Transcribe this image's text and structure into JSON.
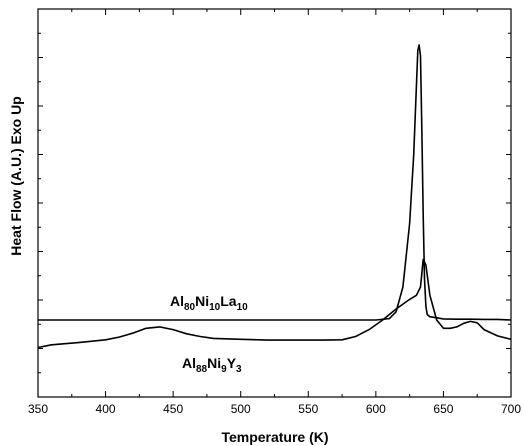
{
  "chart_data": {
    "type": "line",
    "title": "",
    "xlabel": "Temperature (K)",
    "ylabel": "Heat Flow (A.U.) Exo Up",
    "xlim": [
      350,
      700
    ],
    "x_ticks": [
      "350",
      "400",
      "450",
      "500",
      "550",
      "600",
      "650",
      "700"
    ],
    "y_ticks_labeled": false,
    "y_units": "arbitrary",
    "grid": false,
    "series": [
      {
        "name": "Al80Ni10La10",
        "label_parts": [
          {
            "text": "Al",
            "sub": false
          },
          {
            "text": "80",
            "sub": true
          },
          {
            "text": "Ni",
            "sub": false
          },
          {
            "text": "10",
            "sub": true
          },
          {
            "text": "La",
            "sub": false
          },
          {
            "text": "10",
            "sub": true
          }
        ],
        "x": [
          350,
          600,
          610,
          615,
          620,
          625,
          628,
          630,
          631,
          632,
          633,
          634,
          635,
          636,
          637,
          638,
          640,
          645,
          650,
          660,
          670,
          680,
          690,
          700
        ],
        "y": [
          0.0,
          0.0,
          0.005,
          0.03,
          0.12,
          0.35,
          0.6,
          0.85,
          0.98,
          1.0,
          0.96,
          0.7,
          0.38,
          0.15,
          0.05,
          0.02,
          0.012,
          0.008,
          0.004,
          0.003,
          0.003,
          0.002,
          0.002,
          0.0
        ]
      },
      {
        "name": "Al88Ni9Y3",
        "label_parts": [
          {
            "text": "Al",
            "sub": false
          },
          {
            "text": "88",
            "sub": true
          },
          {
            "text": "Ni",
            "sub": false
          },
          {
            "text": "9",
            "sub": true
          },
          {
            "text": "Y",
            "sub": false
          },
          {
            "text": "3",
            "sub": true
          }
        ],
        "x": [
          350,
          360,
          380,
          400,
          410,
          420,
          430,
          440,
          450,
          460,
          470,
          480,
          500,
          520,
          540,
          560,
          575,
          585,
          595,
          605,
          615,
          625,
          630,
          633,
          635,
          637,
          640,
          645,
          650,
          655,
          660,
          665,
          670,
          675,
          680,
          690,
          700
        ],
        "y": [
          -0.1,
          -0.09,
          -0.082,
          -0.072,
          -0.062,
          -0.048,
          -0.03,
          -0.025,
          -0.035,
          -0.05,
          -0.06,
          -0.067,
          -0.07,
          -0.073,
          -0.073,
          -0.073,
          -0.072,
          -0.06,
          -0.035,
          0.0,
          0.04,
          0.075,
          0.09,
          0.12,
          0.22,
          0.2,
          0.09,
          0.0,
          -0.03,
          -0.03,
          -0.025,
          -0.012,
          -0.005,
          -0.01,
          -0.035,
          -0.058,
          -0.07
        ]
      }
    ]
  }
}
